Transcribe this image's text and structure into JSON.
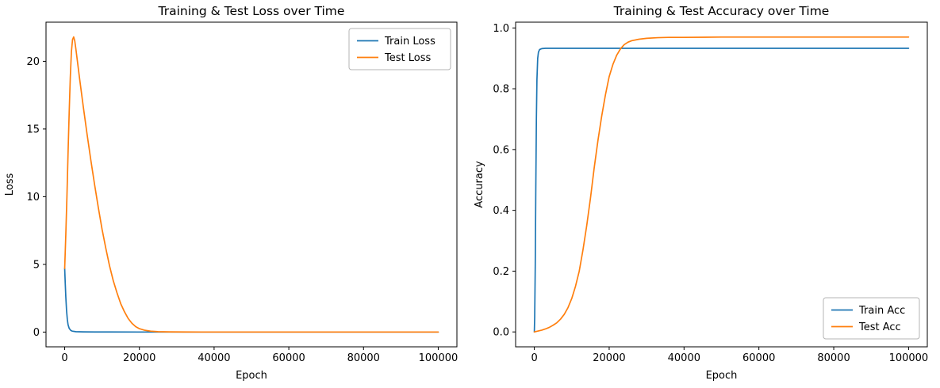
{
  "figure": {
    "background": "#ffffff",
    "line_colors": {
      "train": "#1f77b4",
      "test": "#ff7f0e"
    }
  },
  "chart_data": [
    {
      "type": "line",
      "title": "Training & Test Loss over Time",
      "xlabel": "Epoch",
      "ylabel": "Loss",
      "xlim": [
        -5000,
        105000
      ],
      "ylim": [
        -1.09,
        22.89
      ],
      "xticks": [
        0,
        20000,
        40000,
        60000,
        80000,
        100000
      ],
      "xtick_labels": [
        "0",
        "20000",
        "40000",
        "60000",
        "80000",
        "100000"
      ],
      "yticks": [
        0,
        5,
        10,
        15,
        20
      ],
      "ytick_labels": [
        "0",
        "5",
        "10",
        "15",
        "20"
      ],
      "grid": false,
      "legend_position": "upper-right",
      "series": [
        {
          "name": "Train Loss",
          "color": "#1f77b4",
          "x": [
            0,
            150,
            300,
            500,
            700,
            900,
            1200,
            1600,
            2000,
            3000,
            5000,
            8000,
            12000,
            20000,
            30000,
            50000,
            70000,
            100000
          ],
          "y": [
            4.7,
            3.6,
            2.6,
            1.6,
            0.95,
            0.55,
            0.28,
            0.13,
            0.07,
            0.03,
            0.015,
            0.008,
            0.005,
            0.003,
            0.002,
            0.002,
            0.002,
            0.002
          ]
        },
        {
          "name": "Test Loss",
          "color": "#ff7f0e",
          "x": [
            0,
            300,
            600,
            900,
            1200,
            1500,
            1800,
            2100,
            2400,
            2700,
            3000,
            3500,
            4000,
            5000,
            6000,
            7000,
            8000,
            9000,
            10000,
            11000,
            12000,
            13000,
            14000,
            15000,
            16000,
            17000,
            18000,
            19000,
            20000,
            21500,
            23000,
            25000,
            28000,
            32000,
            40000,
            60000,
            80000,
            100000
          ],
          "y": [
            4.7,
            7.2,
            10.0,
            13.2,
            16.2,
            18.8,
            20.7,
            21.6,
            21.8,
            21.5,
            20.9,
            19.8,
            18.7,
            16.6,
            14.6,
            12.7,
            10.9,
            9.2,
            7.6,
            6.2,
            4.9,
            3.8,
            2.9,
            2.1,
            1.5,
            1.0,
            0.65,
            0.4,
            0.25,
            0.13,
            0.07,
            0.03,
            0.012,
            0.005,
            0.003,
            0.002,
            0.002,
            0.002
          ]
        }
      ]
    },
    {
      "type": "line",
      "title": "Training & Test Accuracy over Time",
      "xlabel": "Epoch",
      "ylabel": "Accuracy",
      "xlim": [
        -5000,
        105000
      ],
      "ylim": [
        -0.049,
        1.019
      ],
      "xticks": [
        0,
        20000,
        40000,
        60000,
        80000,
        100000
      ],
      "xtick_labels": [
        "0",
        "20000",
        "40000",
        "60000",
        "80000",
        "100000"
      ],
      "yticks": [
        0.0,
        0.2,
        0.4,
        0.6,
        0.8,
        1.0
      ],
      "ytick_labels": [
        "0.0",
        "0.2",
        "0.4",
        "0.6",
        "0.8",
        "1.0"
      ],
      "grid": false,
      "legend_position": "lower-right",
      "series": [
        {
          "name": "Train Acc",
          "color": "#1f77b4",
          "x": [
            0,
            100,
            250,
            400,
            550,
            700,
            900,
            1100,
            1400,
            2000,
            3000,
            5000,
            10000,
            20000,
            40000,
            60000,
            80000,
            100000
          ],
          "y": [
            0.0,
            0.05,
            0.22,
            0.48,
            0.7,
            0.83,
            0.9,
            0.92,
            0.929,
            0.932,
            0.933,
            0.933,
            0.933,
            0.933,
            0.933,
            0.933,
            0.933,
            0.933
          ]
        },
        {
          "name": "Test Acc",
          "color": "#ff7f0e",
          "x": [
            0,
            1000,
            2000,
            3000,
            4000,
            5000,
            6000,
            7000,
            8000,
            9000,
            10000,
            11000,
            12000,
            13000,
            14000,
            15000,
            16000,
            17000,
            18000,
            19000,
            20000,
            21000,
            22000,
            23000,
            24000,
            25000,
            26000,
            28000,
            30000,
            33000,
            36000,
            40000,
            50000,
            60000,
            80000,
            100000
          ],
          "y": [
            0.0,
            0.003,
            0.006,
            0.01,
            0.015,
            0.022,
            0.03,
            0.042,
            0.058,
            0.08,
            0.11,
            0.15,
            0.2,
            0.27,
            0.35,
            0.44,
            0.54,
            0.63,
            0.71,
            0.78,
            0.84,
            0.88,
            0.91,
            0.931,
            0.945,
            0.953,
            0.958,
            0.963,
            0.966,
            0.968,
            0.969,
            0.969,
            0.97,
            0.97,
            0.97,
            0.97
          ]
        }
      ]
    }
  ]
}
